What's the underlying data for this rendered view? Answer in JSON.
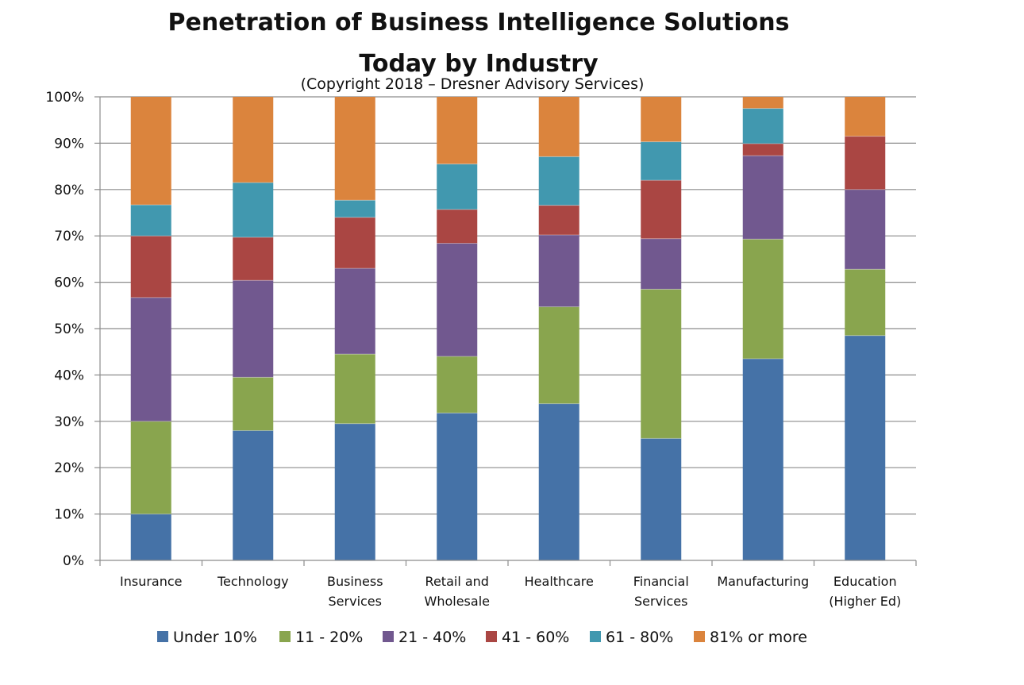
{
  "chart_data": {
    "type": "bar",
    "stacked": true,
    "title": [
      "Penetration of Business Intelligence Solutions",
      "Today by Industry"
    ],
    "subtitle": "(Copyright 2018 – Dresner Advisory Services)",
    "xlabel": "",
    "ylabel": "",
    "ylim": [
      0,
      100
    ],
    "yticks": [
      "0%",
      "10%",
      "20%",
      "30%",
      "40%",
      "50%",
      "60%",
      "70%",
      "80%",
      "90%",
      "100%"
    ],
    "grid": true,
    "legend_position": "bottom",
    "categories": [
      [
        "Insurance"
      ],
      [
        "Technology"
      ],
      [
        "Business",
        "Services"
      ],
      [
        "Retail and",
        "Wholesale"
      ],
      [
        "Healthcare"
      ],
      [
        "Financial",
        "Services"
      ],
      [
        "Manufacturing"
      ],
      [
        "Education",
        "(Higher Ed)"
      ]
    ],
    "series": [
      {
        "name": "Under 10%",
        "color": "#4572a7",
        "values": [
          10,
          28,
          29.5,
          31.8,
          33.8,
          26.3,
          43.5,
          48.5
        ]
      },
      {
        "name": "11 - 20%",
        "color": "#89a54e",
        "values": [
          20,
          11.5,
          15,
          12.2,
          20.9,
          32.2,
          25.8,
          14.3
        ]
      },
      {
        "name": "21 - 40%",
        "color": "#71588f",
        "values": [
          26.7,
          20.9,
          18.5,
          24.4,
          15.5,
          10.9,
          18,
          17.2
        ]
      },
      {
        "name": "41 - 60%",
        "color": "#aa4643",
        "values": [
          13.3,
          9.3,
          11,
          7.3,
          6.4,
          12.6,
          2.6,
          11.5
        ]
      },
      {
        "name": "61 - 80%",
        "color": "#4198af",
        "values": [
          6.7,
          11.8,
          3.7,
          9.8,
          10.5,
          8.3,
          7.6,
          0
        ]
      },
      {
        "name": "81% or more",
        "color": "#db843d",
        "values": [
          23.3,
          18.5,
          22.3,
          14.5,
          12.9,
          9.7,
          2.5,
          8.5
        ]
      }
    ]
  }
}
